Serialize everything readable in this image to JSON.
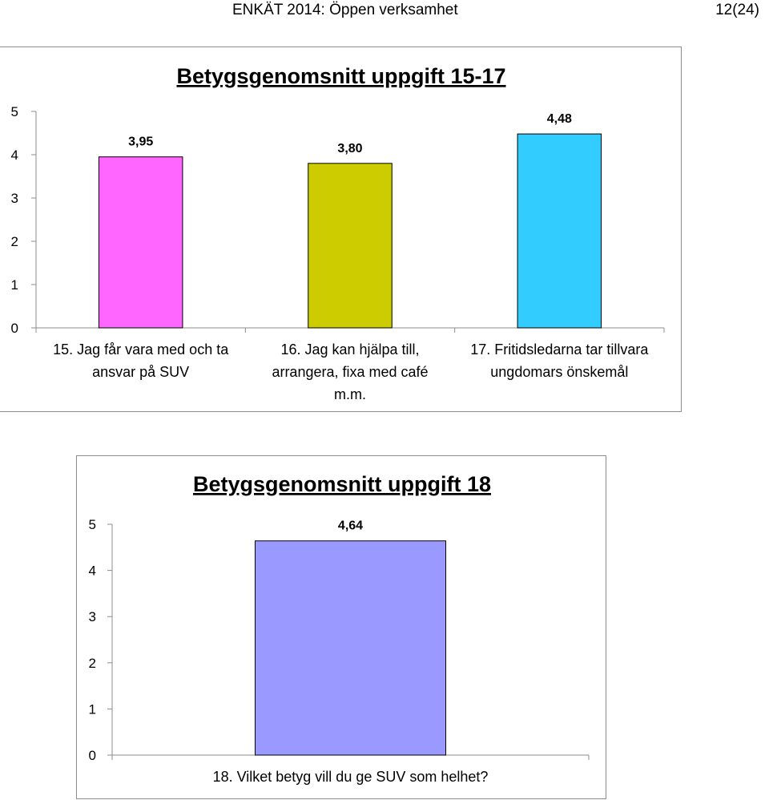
{
  "header": {
    "title": "ENKÄT 2014: Öppen verksamhet",
    "page": "12(24)"
  },
  "chart_data": [
    {
      "type": "bar",
      "title": "Betygsgenomsnitt uppgift 15-17",
      "categories": [
        "15. Jag får vara med och ta ansvar på SUV",
        "16. Jag kan hjälpa till, arrangera, fixa med café m.m.",
        "17. Fritidsledarna tar tillvara ungdomars önskemål"
      ],
      "category_lines": [
        [
          "15. Jag får vara med och ta",
          "ansvar på SUV"
        ],
        [
          "16. Jag kan hjälpa till,",
          "arrangera, fixa med café",
          "m.m."
        ],
        [
          "17. Fritidsledarna tar tillvara",
          "ungdomars önskemål"
        ]
      ],
      "values": [
        3.95,
        3.8,
        4.48
      ],
      "value_labels": [
        "3,95",
        "3,80",
        "4,48"
      ],
      "bar_colors": [
        "#ff66ff",
        "#cccc00",
        "#33ccff"
      ],
      "ylim": [
        0,
        5
      ],
      "yticks": [
        "0",
        "1",
        "2",
        "3",
        "4",
        "5"
      ],
      "grid": false,
      "legend": "none"
    },
    {
      "type": "bar",
      "title": "Betygsgenomsnitt uppgift 18",
      "categories": [
        "18. Vilket betyg vill du ge SUV som helhet?"
      ],
      "category_lines": [
        [
          "18. Vilket betyg vill du ge SUV som helhet?"
        ]
      ],
      "values": [
        4.64
      ],
      "value_labels": [
        "4,64"
      ],
      "bar_colors": [
        "#9999ff"
      ],
      "ylim": [
        0,
        5
      ],
      "yticks": [
        "0",
        "1",
        "2",
        "3",
        "4",
        "5"
      ],
      "grid": false,
      "legend": "none"
    }
  ]
}
